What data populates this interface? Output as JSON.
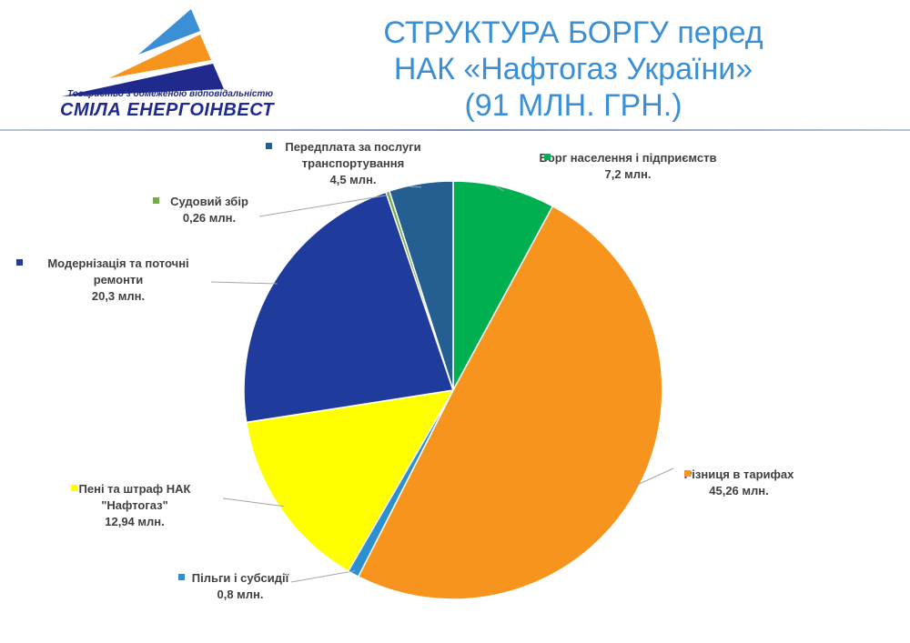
{
  "header": {
    "title_line1": "СТРУКТУРА БОРГУ перед",
    "title_line2": "НАК «Нафтогаз України»",
    "title_line3": "(91 МЛН. ГРН.)"
  },
  "logo": {
    "subtitle": "Товариство з обмеженою відповідальністю",
    "name": "СМІЛА ЕНЕРГОІНВЕСТ"
  },
  "chart_data": {
    "type": "pie",
    "title": "СТРУКТУРА БОРГУ перед НАК «Нафтогаз України» (91 МЛН. ГРН.)",
    "unit": "млн. грн.",
    "slices": [
      {
        "name": "Борг населення і підприємств",
        "value": 7.2,
        "value_label": "7,2 млн.",
        "color": "#00b050"
      },
      {
        "name": "Різниця в тарифах",
        "value": 45.26,
        "value_label": "45,26 млн.",
        "color": "#f7941d"
      },
      {
        "name": "Пільги і субсидії",
        "value": 0.8,
        "value_label": "0,8 млн.",
        "color": "#2e8fd0"
      },
      {
        "name": "Пені та штраф НАК \"Нафтогаз\"",
        "value": 12.94,
        "value_label": "12,94 млн.",
        "color": "#ffff00"
      },
      {
        "name": "Модернізація та поточні ремонти",
        "value": 20.3,
        "value_label": "20,3 млн.",
        "color": "#1f3c9c"
      },
      {
        "name": "Судовий збір",
        "value": 0.26,
        "value_label": "0,26 млн.",
        "color": "#70ad47"
      },
      {
        "name": "Передплата за послуги транспортування",
        "value": 4.5,
        "value_label": "4,5 млн.",
        "color": "#255e91"
      }
    ],
    "legend": "none"
  }
}
